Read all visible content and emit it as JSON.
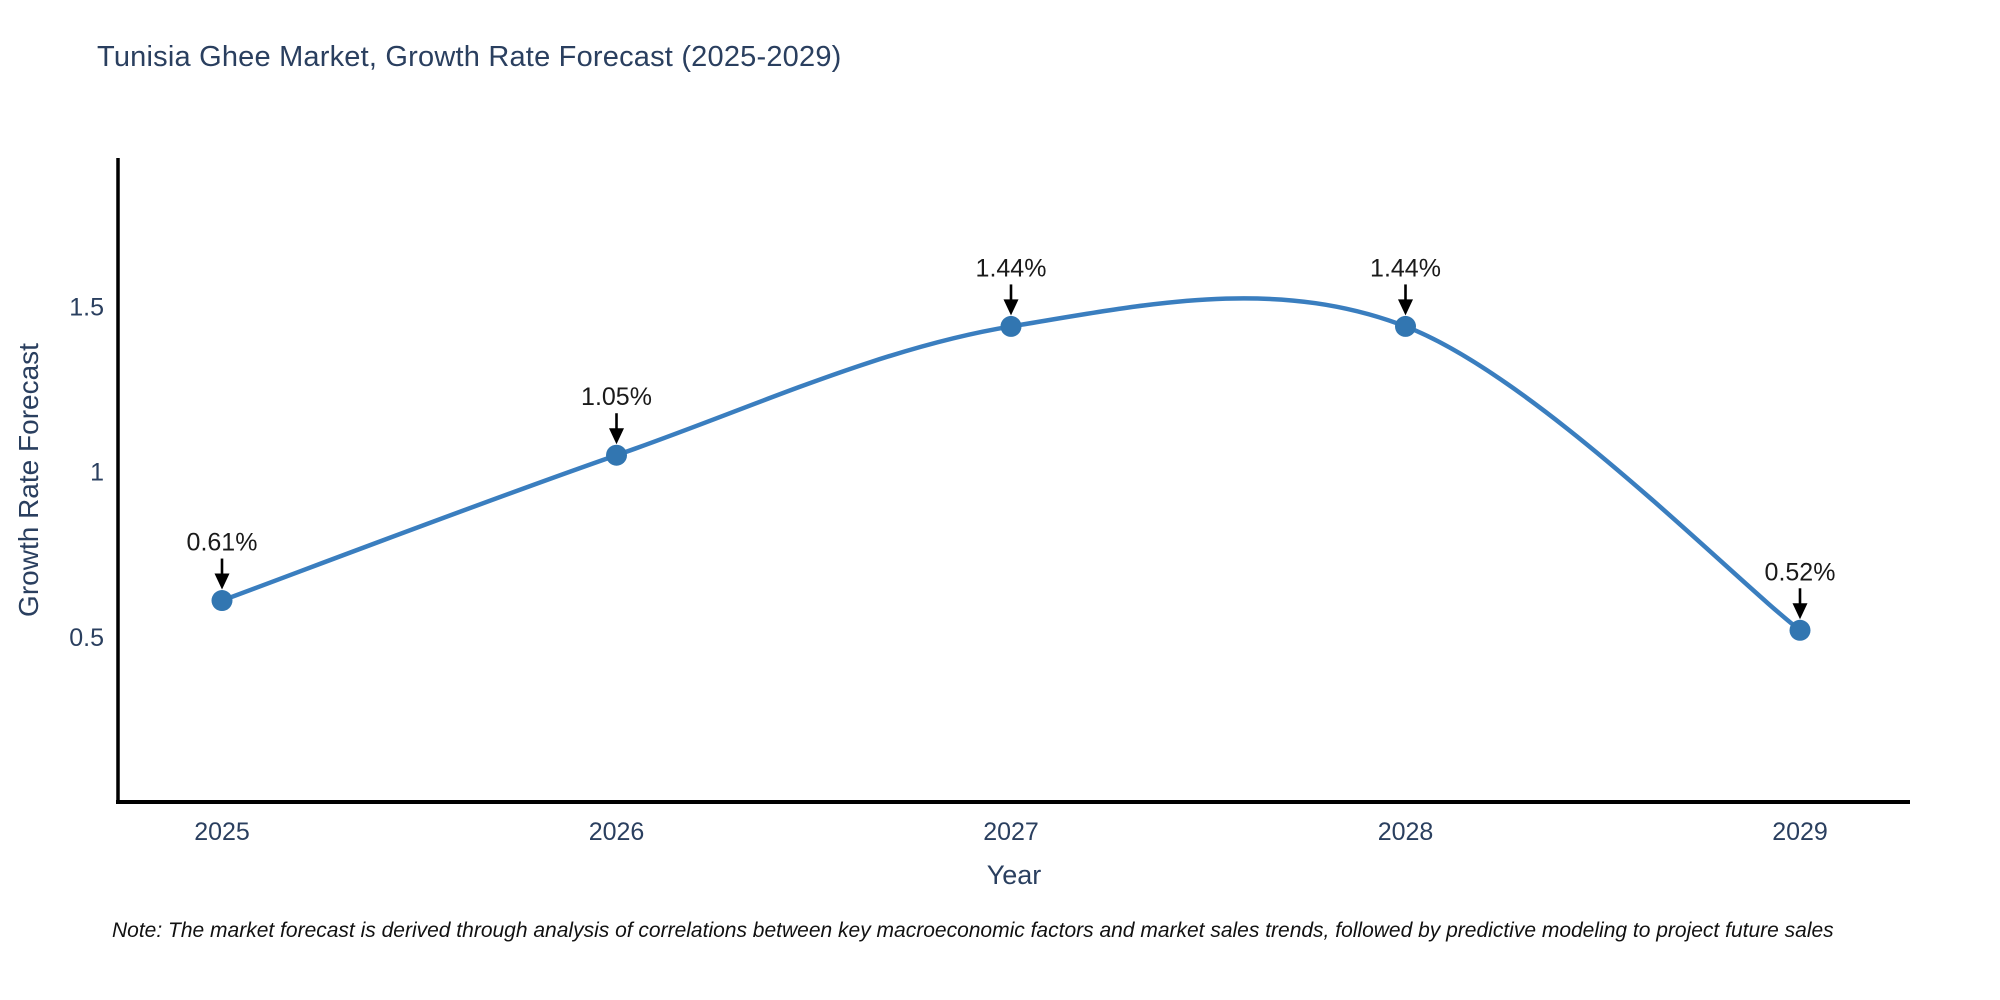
{
  "title": "Tunisia Ghee Market, Growth Rate Forecast (2025-2029)",
  "note": "Note: The market forecast is derived through analysis of correlations between key macroeconomic factors and market sales trends, followed by predictive modeling to project future sales",
  "chart_data": {
    "type": "line",
    "title": "Tunisia Ghee Market, Growth Rate Forecast (2025-2029)",
    "xlabel": "Year",
    "ylabel": "Growth Rate Forecast",
    "categories": [
      "2025",
      "2026",
      "2027",
      "2028",
      "2029"
    ],
    "series": [
      {
        "name": "Growth Rate Forecast",
        "values": [
          0.61,
          1.05,
          1.44,
          1.44,
          0.52
        ],
        "point_labels": [
          "0.61%",
          "1.05%",
          "1.44%",
          "1.44%",
          "0.52%"
        ]
      }
    ],
    "line_shape": "spline",
    "markers": true,
    "annotations_arrows": true,
    "ylim": [
      0,
      1.95
    ],
    "yticks": [
      0.5,
      1,
      1.5
    ],
    "ytick_labels": [
      "0.5",
      "1",
      "1.5"
    ],
    "grid": false,
    "legend_position": "none",
    "colors": {
      "line": "#3a7ebf",
      "marker": "#3276b1",
      "axis_line": "#000000",
      "tick_text": "#2a3f5f",
      "axis_title_text": "#2a3f5f",
      "annotation_text": "#1a1a1a",
      "arrow": "#000000",
      "background": "#ffffff"
    }
  }
}
